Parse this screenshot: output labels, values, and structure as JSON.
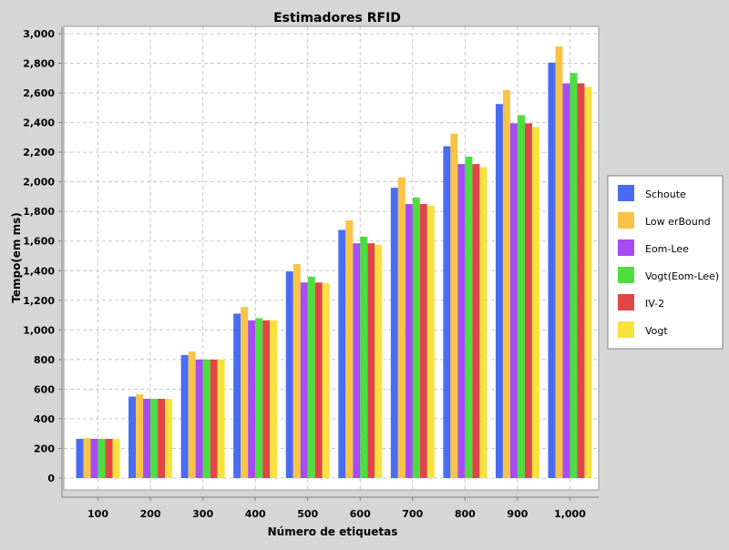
{
  "chart_data": {
    "type": "bar",
    "title": "Estimadores RFID",
    "xlabel": "Número de etiquetas",
    "ylabel": "Tempo(em ms)",
    "ylim": [
      0,
      3000
    ],
    "yticks": [
      0,
      200,
      400,
      600,
      800,
      1000,
      1200,
      1400,
      1600,
      1800,
      2000,
      2200,
      2400,
      2600,
      2800,
      3000
    ],
    "ytick_labels": [
      "0",
      "200",
      "400",
      "600",
      "800",
      "1,000",
      "1,200",
      "1,400",
      "1,600",
      "1,800",
      "2,000",
      "2,200",
      "2,400",
      "2,600",
      "2,800",
      "3,000"
    ],
    "categories": [
      "100",
      "200",
      "300",
      "400",
      "500",
      "600",
      "700",
      "800",
      "900",
      "1,000"
    ],
    "grid": true,
    "legend_position": "right",
    "series": [
      {
        "name": "Schoute",
        "color": "#4a6cf2",
        "values": [
          265,
          550,
          830,
          1110,
          1395,
          1675,
          1960,
          2240,
          2525,
          2805
        ]
      },
      {
        "name": "Low erBound",
        "color": "#f9c446",
        "values": [
          270,
          565,
          855,
          1155,
          1445,
          1740,
          2030,
          2325,
          2620,
          2915
        ]
      },
      {
        "name": "Eom-Lee",
        "color": "#a64cf2",
        "values": [
          265,
          535,
          800,
          1065,
          1320,
          1585,
          1850,
          2120,
          2395,
          2665
        ]
      },
      {
        "name": "Vogt(Eom-Lee)",
        "color": "#4cde3f",
        "values": [
          265,
          535,
          800,
          1080,
          1360,
          1630,
          1895,
          2170,
          2450,
          2735
        ]
      },
      {
        "name": "IV-2",
        "color": "#e04646",
        "values": [
          265,
          535,
          800,
          1065,
          1320,
          1585,
          1850,
          2120,
          2395,
          2665
        ]
      },
      {
        "name": "Vogt",
        "color": "#f8e23c",
        "values": [
          265,
          535,
          800,
          1065,
          1315,
          1575,
          1840,
          2100,
          2370,
          2640
        ]
      }
    ]
  }
}
